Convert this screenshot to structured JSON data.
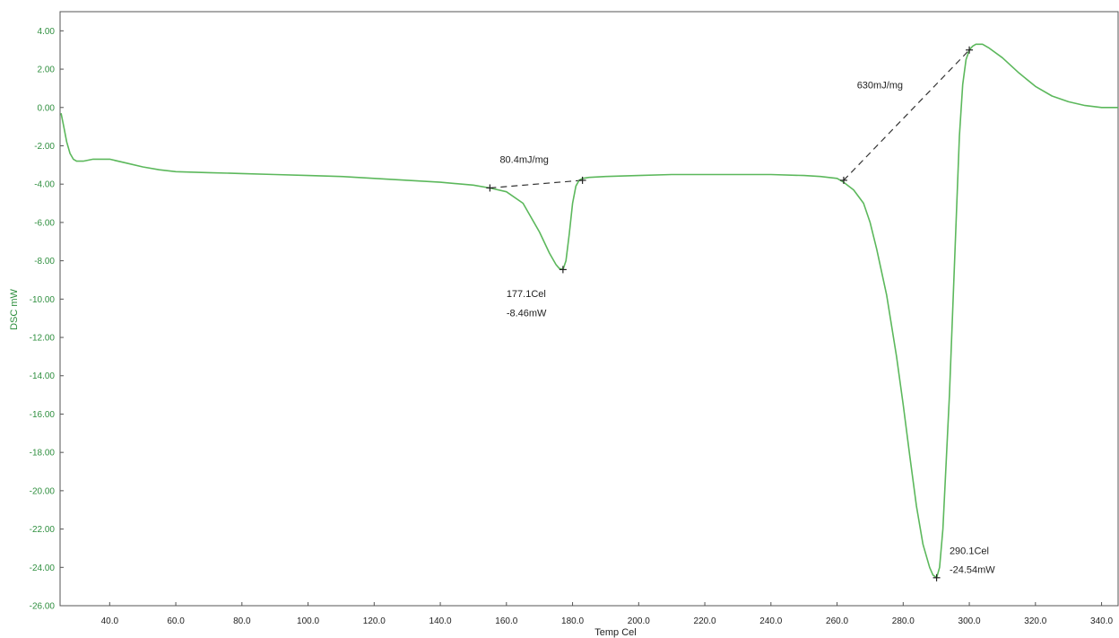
{
  "chart_data": {
    "type": "line",
    "xlabel": "Temp Cel",
    "ylabel": "DSC mW",
    "xlim": [
      25,
      345
    ],
    "ylim": [
      -26,
      5
    ],
    "grid": false,
    "x_ticks": [
      40,
      60,
      80,
      100,
      120,
      140,
      160,
      180,
      200,
      220,
      240,
      260,
      280,
      300,
      320,
      340
    ],
    "x_tick_labels": [
      "40.0",
      "60.0",
      "80.0",
      "100.0",
      "120.0",
      "140.0",
      "160.0",
      "180.0",
      "200.0",
      "220.0",
      "240.0",
      "260.0",
      "280.0",
      "300.0",
      "320.0",
      "340.0"
    ],
    "y_ticks": [
      4,
      2,
      0,
      -2,
      -4,
      -6,
      -8,
      -10,
      -12,
      -14,
      -16,
      -18,
      -20,
      -22,
      -24,
      -26
    ],
    "y_tick_labels": [
      "4.00",
      "2.00",
      "0.00",
      "-2.00",
      "-4.00",
      "-6.00",
      "-8.00",
      "-10.00",
      "-12.00",
      "-14.00",
      "-16.00",
      "-18.00",
      "-20.00",
      "-22.00",
      "-24.00",
      "-26.00"
    ],
    "colors": {
      "curve": "#5cb85c",
      "axis_text": "#2f8f3f",
      "baseline": "#333333"
    },
    "series": [
      {
        "x": [
          25.3,
          26,
          27,
          28,
          29,
          30,
          32,
          35,
          40,
          45,
          50,
          55,
          60,
          70,
          80,
          90,
          100,
          110,
          120,
          130,
          140,
          150,
          155,
          160,
          165,
          170,
          173,
          175,
          176,
          177.1,
          178,
          179,
          180,
          181,
          182,
          183,
          185,
          190,
          200,
          210,
          220,
          230,
          240,
          250,
          255,
          260,
          262,
          265,
          268,
          270,
          272,
          275,
          278,
          280,
          282,
          284,
          286,
          288,
          289,
          290.1,
          291,
          292,
          294,
          296,
          297,
          298,
          299,
          300,
          301,
          302,
          304,
          306,
          310,
          315,
          320,
          325,
          330,
          335,
          340,
          345
        ],
        "y": [
          -0.3,
          -0.9,
          -1.8,
          -2.4,
          -2.7,
          -2.8,
          -2.8,
          -2.7,
          -2.7,
          -2.9,
          -3.1,
          -3.25,
          -3.35,
          -3.4,
          -3.45,
          -3.5,
          -3.55,
          -3.6,
          -3.7,
          -3.8,
          -3.9,
          -4.05,
          -4.2,
          -4.4,
          -5.0,
          -6.5,
          -7.6,
          -8.2,
          -8.4,
          -8.46,
          -8.0,
          -6.6,
          -5.0,
          -4.1,
          -3.8,
          -3.7,
          -3.65,
          -3.6,
          -3.55,
          -3.5,
          -3.5,
          -3.5,
          -3.5,
          -3.55,
          -3.6,
          -3.7,
          -3.9,
          -4.3,
          -5.0,
          -6.0,
          -7.4,
          -9.8,
          -13.0,
          -15.5,
          -18.2,
          -20.8,
          -22.8,
          -24.0,
          -24.4,
          -24.54,
          -24.0,
          -22.0,
          -15.0,
          -6.0,
          -1.5,
          1.2,
          2.5,
          3.0,
          3.2,
          3.3,
          3.3,
          3.1,
          2.6,
          1.8,
          1.1,
          0.6,
          0.3,
          0.1,
          0.0,
          0.0
        ]
      }
    ],
    "markers": [
      {
        "x": 155,
        "y": -4.2
      },
      {
        "x": 183,
        "y": -3.8
      },
      {
        "x": 177.1,
        "y": -8.46
      },
      {
        "x": 262,
        "y": -3.8
      },
      {
        "x": 300,
        "y": 3.0
      },
      {
        "x": 290.1,
        "y": -24.54
      }
    ],
    "baselines": [
      {
        "x1": 155,
        "y1": -4.2,
        "x2": 183,
        "y2": -3.8
      },
      {
        "x1": 262,
        "y1": -3.8,
        "x2": 300,
        "y2": 3.0
      }
    ],
    "annotations": [
      {
        "text": "80.4mJ/mg",
        "x": 158,
        "y": -2.9
      },
      {
        "text": "630mJ/mg",
        "x": 266,
        "y": 1.0
      },
      {
        "text": "177.1Cel",
        "x": 160,
        "y": -9.9
      },
      {
        "text": "-8.46mW",
        "x": 160,
        "y": -10.9
      },
      {
        "text": "290.1Cel",
        "x": 294,
        "y": -23.3
      },
      {
        "text": "-24.54mW",
        "x": 294,
        "y": -24.3
      }
    ]
  }
}
